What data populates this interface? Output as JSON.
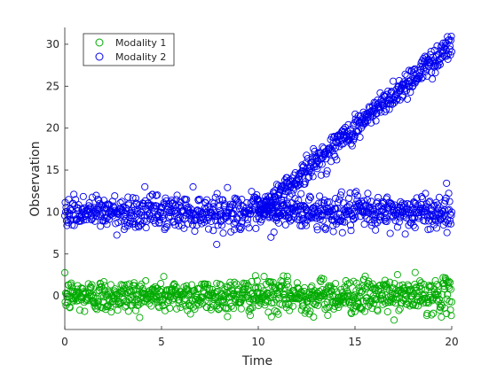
{
  "chart_data": {
    "type": "scatter",
    "xlabel": "Time",
    "ylabel": "Observation",
    "xlim": [
      0,
      20
    ],
    "ylim": [
      -4,
      32
    ],
    "xticks": [
      0,
      5,
      10,
      15,
      20
    ],
    "yticks": [
      0,
      5,
      10,
      15,
      20,
      25,
      30
    ],
    "grid": false,
    "legend_position": "top-left",
    "marker": "open-circle",
    "series": [
      {
        "name": "Modality 1",
        "color": "#00aa00",
        "description": "noise around 0 across full time range",
        "x_range": [
          0,
          20
        ],
        "y_center": 0,
        "y_spread": 1,
        "points": 900
      },
      {
        "name": "Modality 2",
        "color": "#0000ee",
        "segments": [
          {
            "x_range": [
              0,
              20
            ],
            "y_center": 10,
            "y_spread": 1,
            "points": 900
          },
          {
            "x_range": [
              10,
              20
            ],
            "y_start": 10,
            "y_end": 30,
            "y_spread": 0.8,
            "points": 450
          }
        ]
      }
    ]
  }
}
